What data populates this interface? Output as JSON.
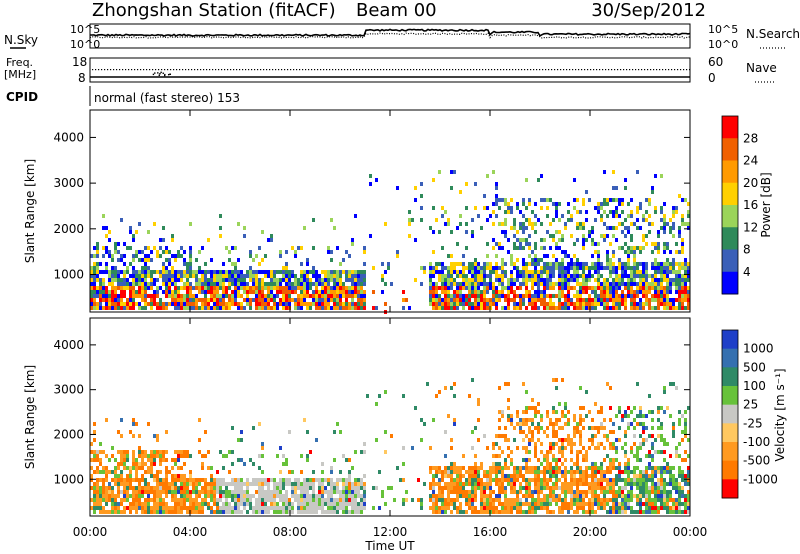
{
  "header": {
    "station": "Zhongshan Station (fitACF)",
    "beam": "Beam 00",
    "date": "30/Sep/2012"
  },
  "noise_panel": {
    "left_label": "N.Sky",
    "right_label": "N.Search",
    "ticks": [
      "10^5",
      "10^0"
    ]
  },
  "freq_panel": {
    "left_label": "Freq.",
    "left_unit": "[MHz]",
    "left_ticks": [
      "18",
      "8"
    ],
    "right_label": "Nave",
    "right_ticks": [
      "60",
      "0"
    ]
  },
  "cpid_panel": {
    "label": "CPID",
    "text": "normal (fast stereo) 153"
  },
  "x_axis": {
    "label": "Time UT",
    "ticks": [
      "00:00",
      "04:00",
      "08:00",
      "12:00",
      "16:00",
      "20:00",
      "00:00"
    ],
    "range_hours": [
      0,
      24
    ]
  },
  "colors": {
    "power": [
      "#0000ff",
      "#3a5fb8",
      "#2f8a5a",
      "#9bd45a",
      "#ffd000",
      "#ff9a00",
      "#f06000",
      "#ff0000"
    ],
    "velocity": [
      "#1e3fc8",
      "#3570b0",
      "#2f8a66",
      "#67c23a",
      "#c8c8c4",
      "#ffc860",
      "#ff9a20",
      "#ff7a00",
      "#ff0000"
    ]
  },
  "chart_data": [
    {
      "type": "heatmap",
      "name": "power",
      "ylabel": "Slant Range [km]",
      "ylim": [
        180,
        4600
      ],
      "yticks": [
        1000,
        2000,
        3000,
        4000
      ],
      "colorbar_label": "Power [dB]",
      "colorbar_ticks": [
        "4",
        "8",
        "12",
        "16",
        "20",
        "24",
        "28"
      ],
      "color_range": [
        0,
        32
      ],
      "xlim": [
        0,
        24
      ]
    },
    {
      "type": "heatmap",
      "name": "velocity",
      "ylabel": "Slant Range [km]",
      "ylim": [
        180,
        4600
      ],
      "yticks": [
        1000,
        2000,
        3000,
        4000
      ],
      "colorbar_label": "Velocity [m s⁻¹]",
      "colorbar_ticks": [
        "1000",
        "500",
        "100",
        "25",
        "-25",
        "-100",
        "-500",
        "-1000"
      ],
      "xlim": [
        0,
        24
      ]
    }
  ]
}
